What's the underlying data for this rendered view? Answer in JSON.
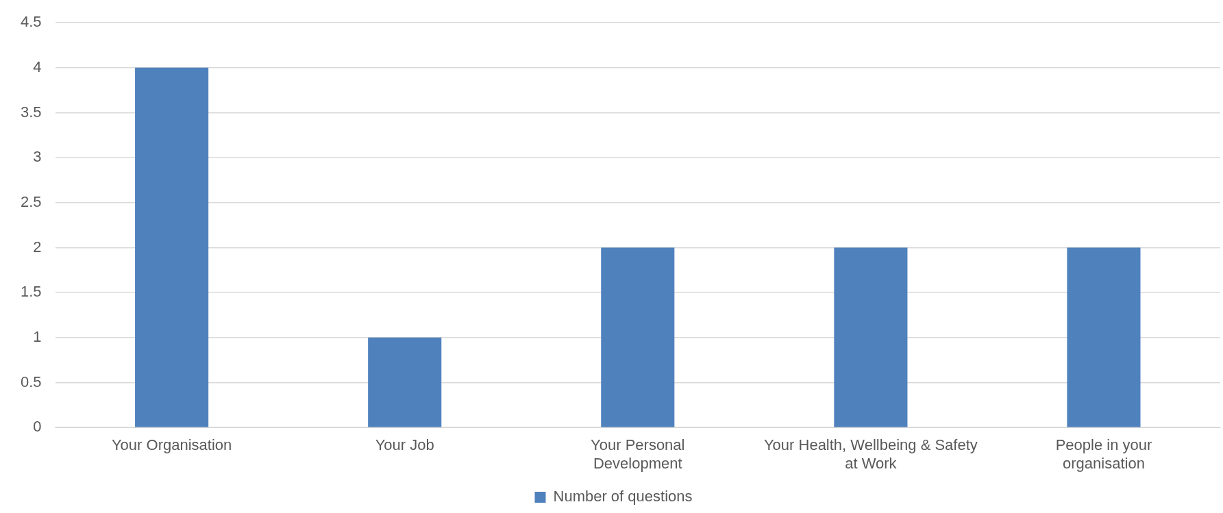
{
  "chart_data": {
    "type": "bar",
    "categories": [
      "Your Organisation",
      "Your Job",
      "Your Personal Development",
      "Your Health, Wellbeing & Safety at Work",
      "People in your organisation"
    ],
    "series": [
      {
        "name": "Number of questions",
        "color": "#4f81bd",
        "values": [
          4,
          1,
          2,
          2,
          2
        ]
      }
    ],
    "ylim": [
      0,
      4.5
    ],
    "yticks": [
      0,
      0.5,
      1,
      1.5,
      2,
      2.5,
      3,
      3.5,
      4,
      4.5
    ],
    "grid": "y",
    "legend": "bottom"
  }
}
